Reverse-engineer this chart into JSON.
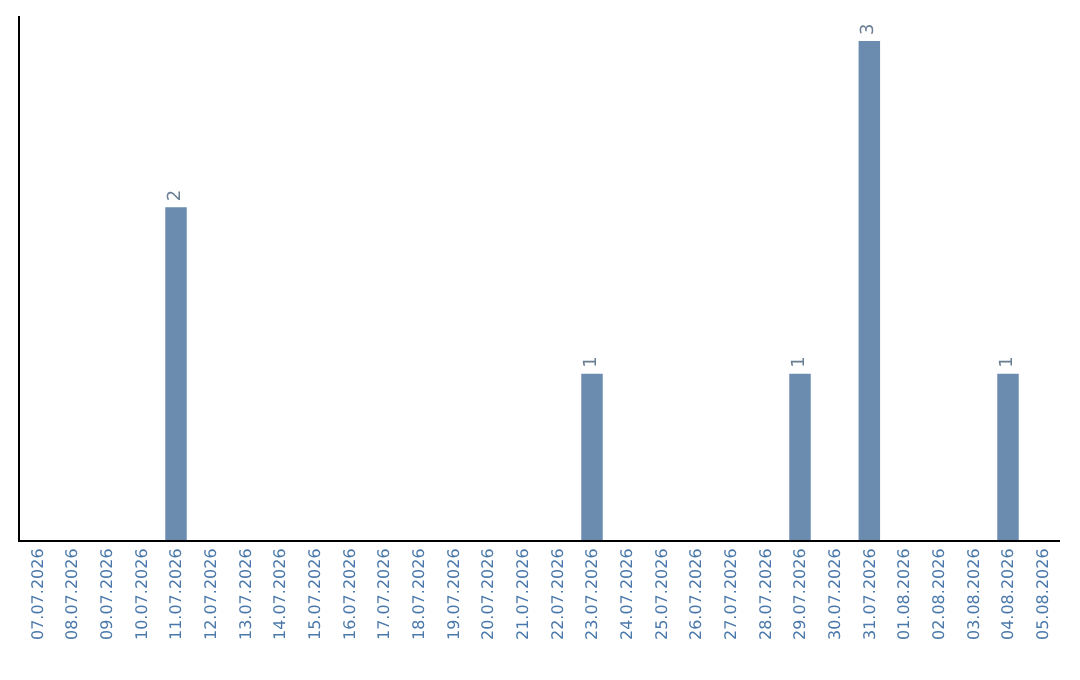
{
  "chart_data": {
    "type": "bar",
    "categories": [
      "07.07.2026",
      "08.07.2026",
      "09.07.2026",
      "10.07.2026",
      "11.07.2026",
      "12.07.2026",
      "13.07.2026",
      "14.07.2026",
      "15.07.2026",
      "16.07.2026",
      "17.07.2026",
      "18.07.2026",
      "19.07.2026",
      "20.07.2026",
      "21.07.2026",
      "22.07.2026",
      "23.07.2026",
      "24.07.2026",
      "25.07.2026",
      "26.07.2026",
      "27.07.2026",
      "28.07.2026",
      "29.07.2026",
      "30.07.2026",
      "31.07.2026",
      "01.08.2026",
      "02.08.2026",
      "03.08.2026",
      "04.08.2026",
      "05.08.2026"
    ],
    "values": [
      0,
      0,
      0,
      0,
      2,
      0,
      0,
      0,
      0,
      0,
      0,
      0,
      0,
      0,
      0,
      0,
      1,
      0,
      0,
      0,
      0,
      0,
      1,
      0,
      3,
      0,
      0,
      0,
      1,
      0
    ],
    "value_labels": [
      null,
      null,
      null,
      null,
      "2",
      null,
      null,
      null,
      null,
      null,
      null,
      null,
      null,
      null,
      null,
      null,
      "1",
      null,
      null,
      null,
      null,
      null,
      "1",
      null,
      "3",
      null,
      null,
      null,
      "1",
      null
    ],
    "color": "#6b8cae",
    "ylim": [
      0,
      3.15
    ],
    "tick_labels": "x"
  }
}
